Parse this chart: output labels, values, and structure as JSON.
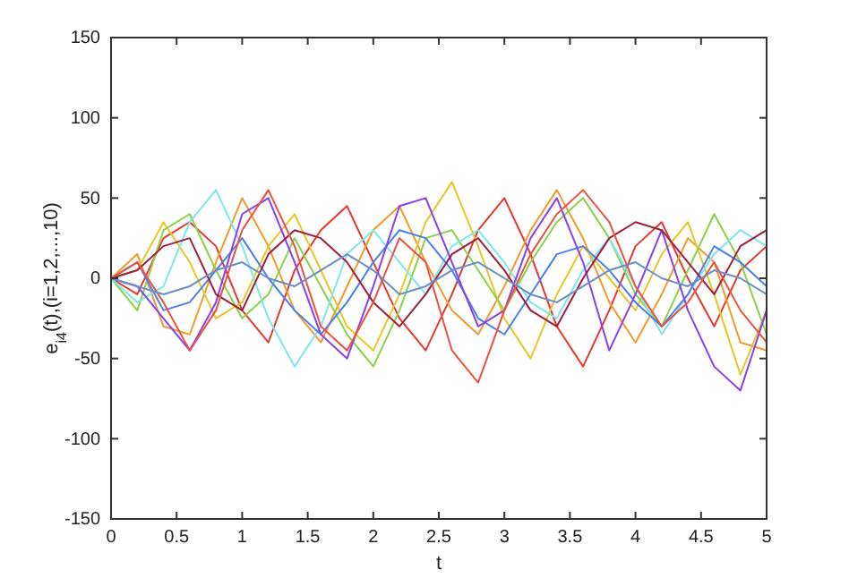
{
  "chart_data": {
    "type": "line",
    "xlabel": "t",
    "ylabel": "e$_{i4}$(t),(i=1,2,...,10)",
    "x": [
      0,
      0.2,
      0.4,
      0.6,
      0.8,
      1,
      1.2,
      1.4,
      1.6,
      1.8,
      2,
      2.2,
      2.4,
      2.6,
      2.8,
      3,
      3.2,
      3.4,
      3.6,
      3.8,
      4,
      4.2,
      4.4,
      4.6,
      4.8,
      5
    ],
    "xlim": [
      0,
      5
    ],
    "xticks": [
      0,
      0.5,
      1,
      1.5,
      2,
      2.5,
      3,
      3.5,
      4,
      4.5,
      5
    ],
    "ylim": [
      -150,
      150
    ],
    "yticks": [
      -150,
      -100,
      -50,
      0,
      50,
      100,
      150
    ],
    "grid": false,
    "marker": "none",
    "line_style": "solid",
    "series": [
      {
        "color": "#e8382b",
        "values": [
          0,
          -10,
          25,
          35,
          20,
          -20,
          -40,
          5,
          30,
          45,
          10,
          -25,
          -45,
          -10,
          30,
          50,
          15,
          -30,
          -55,
          -20,
          20,
          35,
          0,
          -30,
          5,
          20
        ]
      },
      {
        "color": "#f59a2a",
        "values": [
          0,
          15,
          -30,
          -35,
          10,
          50,
          20,
          -20,
          -40,
          -5,
          30,
          45,
          10,
          -20,
          -35,
          -5,
          30,
          55,
          25,
          -15,
          -40,
          -10,
          25,
          10,
          -40,
          -45
        ]
      },
      {
        "color": "#e8c727",
        "values": [
          0,
          5,
          35,
          10,
          -25,
          -15,
          20,
          40,
          5,
          -30,
          -45,
          -10,
          35,
          60,
          20,
          -25,
          -50,
          -10,
          20,
          0,
          -20,
          15,
          35,
          -10,
          -60,
          -20
        ]
      },
      {
        "color": "#8bd14a",
        "values": [
          0,
          -20,
          30,
          40,
          5,
          -25,
          -10,
          25,
          -5,
          -35,
          -55,
          -20,
          25,
          30,
          5,
          -20,
          10,
          35,
          50,
          25,
          -10,
          -30,
          5,
          40,
          10,
          -35
        ]
      },
      {
        "color": "#7fe6ef",
        "values": [
          0,
          -15,
          -5,
          35,
          55,
          20,
          -25,
          -55,
          -30,
          15,
          30,
          10,
          -10,
          20,
          30,
          10,
          -15,
          -25,
          5,
          25,
          -5,
          -35,
          -10,
          15,
          30,
          20
        ]
      },
      {
        "color": "#4a7ff0",
        "values": [
          0,
          10,
          -20,
          -15,
          5,
          25,
          0,
          -20,
          -35,
          -15,
          10,
          30,
          25,
          5,
          -25,
          -35,
          -10,
          15,
          20,
          5,
          -15,
          -30,
          -10,
          20,
          10,
          -5
        ]
      },
      {
        "color": "#8a3ff0",
        "values": [
          0,
          -5,
          -25,
          -45,
          -15,
          40,
          50,
          10,
          -35,
          -50,
          -5,
          45,
          50,
          10,
          -30,
          -20,
          25,
          50,
          10,
          -45,
          -10,
          30,
          -20,
          -55,
          -70,
          -20
        ]
      },
      {
        "color": "#a01c3a",
        "values": [
          0,
          5,
          20,
          25,
          -10,
          -20,
          15,
          30,
          25,
          10,
          -15,
          -30,
          -10,
          15,
          25,
          5,
          -20,
          -30,
          0,
          25,
          35,
          30,
          10,
          -10,
          20,
          30
        ]
      },
      {
        "color": "#f05040",
        "values": [
          0,
          10,
          -15,
          -45,
          -20,
          30,
          55,
          20,
          -30,
          -45,
          -15,
          25,
          10,
          -45,
          -65,
          -20,
          15,
          40,
          55,
          35,
          -5,
          -30,
          -15,
          10,
          -20,
          -40
        ]
      },
      {
        "color": "#6a8fc8",
        "values": [
          0,
          -5,
          -10,
          -5,
          5,
          10,
          0,
          -5,
          5,
          15,
          5,
          -10,
          -5,
          5,
          10,
          0,
          -10,
          -15,
          -5,
          5,
          10,
          0,
          -5,
          5,
          0,
          -10
        ]
      }
    ]
  }
}
